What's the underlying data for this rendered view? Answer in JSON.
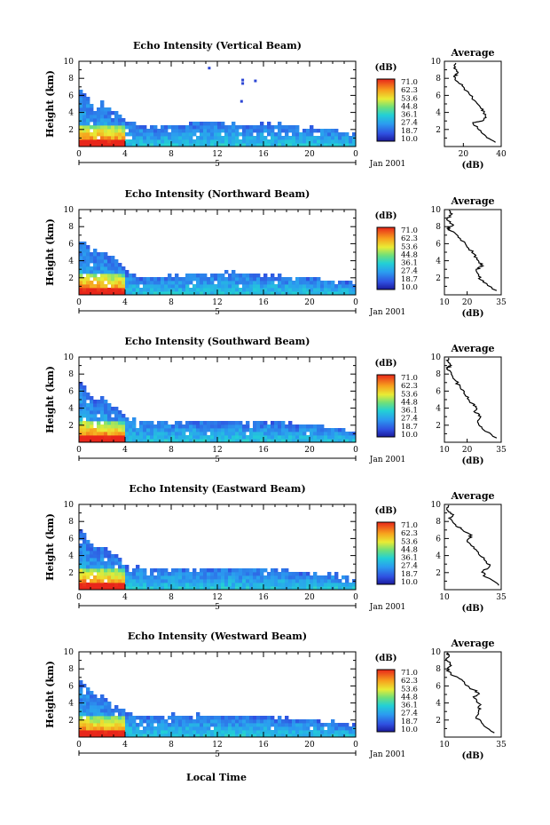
{
  "chart_data": {
    "type": "heatmap",
    "x_unit_label": "Local Time",
    "date_label": "Jan 2001",
    "day_label": "5",
    "x_ticks": [
      "0",
      "4",
      "8",
      "12",
      "16",
      "20",
      "0"
    ],
    "y_label": "Height (km)",
    "y_ticks": [
      "2",
      "4",
      "6",
      "8",
      "10"
    ],
    "xlim": [
      0,
      24
    ],
    "ylim": [
      0,
      10
    ],
    "colorbar": {
      "unit": "(dB)",
      "labels": [
        "71.0",
        "62.3",
        "53.6",
        "44.8",
        "36.1",
        "27.4",
        "18.7",
        "10.0"
      ],
      "range": [
        10.0,
        71.0
      ]
    },
    "average_xlabel": "(dB)",
    "panels": [
      {
        "title": "Echo Intensity (Vertical Beam)",
        "average_title": "Average",
        "avg_ticks": [
          "20",
          "40"
        ],
        "avg_xlim": [
          10,
          40
        ],
        "top_height_km": [
          [
            0,
            6.8
          ],
          [
            0.5,
            6.4
          ],
          [
            1,
            5.2
          ],
          [
            1.5,
            4.6
          ],
          [
            2,
            5.4
          ],
          [
            2.5,
            4.8
          ],
          [
            3,
            4.4
          ],
          [
            3.5,
            3.8
          ],
          [
            4,
            3.0
          ],
          [
            5,
            2.6
          ],
          [
            6,
            2.3
          ],
          [
            8,
            2.6
          ],
          [
            10,
            2.7
          ],
          [
            12,
            2.9
          ],
          [
            14,
            2.5
          ],
          [
            16,
            2.6
          ],
          [
            18,
            2.6
          ],
          [
            20,
            2.3
          ],
          [
            22,
            1.9
          ],
          [
            24,
            1.4
          ]
        ],
        "outliers": [
          [
            11.3,
            9.2
          ],
          [
            14.2,
            7.8
          ],
          [
            15.3,
            7.7
          ],
          [
            14.1,
            5.3
          ],
          [
            14.2,
            7.4
          ]
        ],
        "average_profile": [
          [
            37,
            0.5
          ],
          [
            32,
            1.2
          ],
          [
            28,
            2
          ],
          [
            25,
            2.8
          ],
          [
            30,
            3.0
          ],
          [
            32,
            3.4
          ],
          [
            31,
            4.0
          ],
          [
            29,
            4.6
          ],
          [
            26,
            5.4
          ],
          [
            23,
            6.2
          ],
          [
            20,
            7.0
          ],
          [
            17,
            7.6
          ],
          [
            15,
            8.2
          ],
          [
            17,
            8.6
          ],
          [
            15,
            9.2
          ],
          [
            16,
            9.8
          ]
        ]
      },
      {
        "title": "Echo Intensity (Northward Beam)",
        "average_title": "Average",
        "avg_ticks": [
          "10",
          "20",
          "35"
        ],
        "avg_xlim": [
          10,
          35
        ],
        "top_height_km": [
          [
            0,
            6.6
          ],
          [
            0.5,
            6.2
          ],
          [
            1,
            5.6
          ],
          [
            1.5,
            4.9
          ],
          [
            2,
            5.2
          ],
          [
            2.5,
            4.8
          ],
          [
            3,
            4.4
          ],
          [
            3.5,
            3.8
          ],
          [
            4,
            3.0
          ],
          [
            5,
            2.2
          ],
          [
            6,
            2.0
          ],
          [
            8,
            2.2
          ],
          [
            10,
            2.4
          ],
          [
            12,
            2.6
          ],
          [
            14,
            2.6
          ],
          [
            16,
            2.4
          ],
          [
            18,
            2.3
          ],
          [
            20,
            2.0
          ],
          [
            22,
            1.8
          ],
          [
            24,
            1.4
          ]
        ],
        "outliers": [],
        "average_profile": [
          [
            33,
            0.5
          ],
          [
            27,
            1.5
          ],
          [
            25,
            2.2
          ],
          [
            24,
            3.0
          ],
          [
            27,
            3.4
          ],
          [
            25,
            4.0
          ],
          [
            23,
            4.8
          ],
          [
            20,
            5.6
          ],
          [
            17,
            6.6
          ],
          [
            14,
            7.4
          ],
          [
            11,
            7.8
          ],
          [
            14,
            8.2
          ],
          [
            11,
            8.8
          ],
          [
            13,
            9.4
          ],
          [
            12,
            9.9
          ]
        ]
      },
      {
        "title": "Echo Intensity (Southward Beam)",
        "average_title": "Average",
        "avg_ticks": [
          "10",
          "20",
          "35"
        ],
        "avg_xlim": [
          10,
          35
        ],
        "top_height_km": [
          [
            0,
            7.4
          ],
          [
            0.5,
            6.6
          ],
          [
            1,
            5.6
          ],
          [
            1.5,
            5.0
          ],
          [
            2,
            5.4
          ],
          [
            2.5,
            4.8
          ],
          [
            3,
            4.2
          ],
          [
            3.5,
            3.6
          ],
          [
            4,
            3.0
          ],
          [
            5,
            2.6
          ],
          [
            6,
            2.4
          ],
          [
            8,
            2.4
          ],
          [
            10,
            2.5
          ],
          [
            12,
            2.6
          ],
          [
            14,
            2.4
          ],
          [
            16,
            2.4
          ],
          [
            18,
            2.3
          ],
          [
            20,
            2.0
          ],
          [
            22,
            1.8
          ],
          [
            24,
            1.4
          ]
        ],
        "outliers": [],
        "average_profile": [
          [
            33,
            0.5
          ],
          [
            27,
            1.5
          ],
          [
            25,
            2.2
          ],
          [
            26,
            3.0
          ],
          [
            23,
            3.6
          ],
          [
            24,
            4.2
          ],
          [
            21,
            4.8
          ],
          [
            19,
            5.6
          ],
          [
            17,
            6.4
          ],
          [
            15,
            7.2
          ],
          [
            13,
            8.0
          ],
          [
            11,
            8.6
          ],
          [
            13,
            9.0
          ],
          [
            11,
            9.6
          ],
          [
            12,
            9.9
          ]
        ]
      },
      {
        "title": "Echo Intensity (Eastward Beam)",
        "average_title": "Average",
        "avg_ticks": [
          "10",
          "35"
        ],
        "avg_xlim": [
          10,
          35
        ],
        "top_height_km": [
          [
            0,
            7.6
          ],
          [
            0.5,
            6.4
          ],
          [
            1,
            5.4
          ],
          [
            1.5,
            4.8
          ],
          [
            2,
            5.2
          ],
          [
            2.5,
            4.6
          ],
          [
            3,
            4.2
          ],
          [
            3.5,
            3.6
          ],
          [
            4,
            3.0
          ],
          [
            5,
            2.6
          ],
          [
            6,
            2.4
          ],
          [
            8,
            2.4
          ],
          [
            10,
            2.5
          ],
          [
            12,
            2.6
          ],
          [
            14,
            2.5
          ],
          [
            16,
            2.4
          ],
          [
            18,
            2.3
          ],
          [
            20,
            2.0
          ],
          [
            22,
            1.8
          ],
          [
            24,
            1.4
          ]
        ],
        "outliers": [],
        "average_profile": [
          [
            34,
            0.5
          ],
          [
            28,
            1.5
          ],
          [
            27,
            2.2
          ],
          [
            30,
            2.8
          ],
          [
            28,
            3.4
          ],
          [
            25,
            4.2
          ],
          [
            23,
            5.0
          ],
          [
            20,
            5.8
          ],
          [
            22,
            6.4
          ],
          [
            18,
            7.0
          ],
          [
            15,
            7.6
          ],
          [
            12,
            8.4
          ],
          [
            14,
            8.8
          ],
          [
            11,
            9.4
          ],
          [
            12,
            9.9
          ]
        ]
      },
      {
        "title": "Echo Intensity (Westward Beam)",
        "average_title": "Average",
        "avg_ticks": [
          "10",
          "35"
        ],
        "avg_xlim": [
          10,
          35
        ],
        "top_height_km": [
          [
            0,
            6.6
          ],
          [
            0.5,
            6.2
          ],
          [
            1,
            5.4
          ],
          [
            1.5,
            4.6
          ],
          [
            2,
            5.0
          ],
          [
            2.5,
            4.4
          ],
          [
            3,
            4.0
          ],
          [
            3.5,
            3.6
          ],
          [
            4,
            3.0
          ],
          [
            5,
            2.6
          ],
          [
            6,
            2.4
          ],
          [
            8,
            2.6
          ],
          [
            10,
            2.6
          ],
          [
            12,
            2.6
          ],
          [
            14,
            2.5
          ],
          [
            16,
            2.4
          ],
          [
            18,
            2.3
          ],
          [
            20,
            2.0
          ],
          [
            22,
            1.8
          ],
          [
            24,
            1.4
          ]
        ],
        "outliers": [],
        "average_profile": [
          [
            32,
            0.5
          ],
          [
            27,
            1.5
          ],
          [
            24,
            2.4
          ],
          [
            25,
            3.2
          ],
          [
            26,
            3.8
          ],
          [
            23,
            4.6
          ],
          [
            25,
            5.2
          ],
          [
            21,
            5.8
          ],
          [
            18,
            6.6
          ],
          [
            14,
            7.2
          ],
          [
            11,
            7.8
          ],
          [
            13,
            8.4
          ],
          [
            11,
            9.0
          ],
          [
            12,
            9.6
          ],
          [
            11,
            9.9
          ]
        ]
      }
    ]
  }
}
